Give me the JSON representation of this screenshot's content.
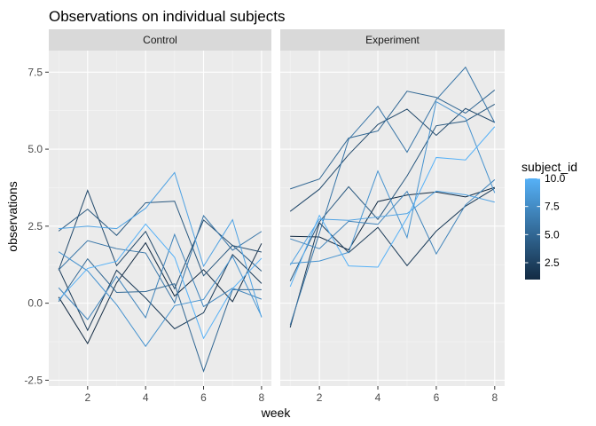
{
  "chart_data": {
    "type": "line",
    "title": "Observations on individual subjects",
    "xlabel": "week",
    "ylabel": "observations",
    "xlim": [
      0.66,
      8.34
    ],
    "ylim": [
      -2.69,
      8.2
    ],
    "x_ticks": [
      2,
      4,
      6,
      8
    ],
    "y_ticks": [
      -2.5,
      0.0,
      2.5,
      5.0,
      7.5
    ],
    "y_tick_labels": [
      "-2.5",
      "0.0",
      "2.5",
      "5.0",
      "7.5"
    ],
    "x": [
      1,
      2,
      3,
      4,
      5,
      6,
      7,
      8
    ],
    "grid": true,
    "color_legend": {
      "title": "subject_id",
      "range": [
        1,
        10
      ],
      "breaks": [
        2.5,
        5.0,
        7.5,
        10.0
      ],
      "break_labels": [
        "2.5",
        "5.0",
        "7.5",
        "10.0"
      ],
      "low_color": "#132B43",
      "high_color": "#56B1F7",
      "placement": "right"
    },
    "panels": [
      {
        "name": "Control",
        "series": [
          {
            "subject_id": 1,
            "values": [
              0.2,
              -1.31,
              0.66,
              1.96,
              0.23,
              1.09,
              0.05,
              1.94
            ]
          },
          {
            "subject_id": 2,
            "values": [
              1.13,
              -0.88,
              1.07,
              0.17,
              -0.83,
              -0.31,
              1.58,
              0.64
            ]
          },
          {
            "subject_id": 3,
            "values": [
              1.07,
              3.66,
              1.22,
              2.33,
              0.47,
              2.7,
              1.87,
              1.66
            ]
          },
          {
            "subject_id": 4,
            "values": [
              2.34,
              3.05,
              2.2,
              3.26,
              3.31,
              0.89,
              1.88,
              1.04
            ]
          },
          {
            "subject_id": 5,
            "values": [
              0.05,
              1.44,
              0.35,
              0.38,
              0.63,
              -2.21,
              0.44,
              0.44
            ]
          },
          {
            "subject_id": 6,
            "values": [
              1.08,
              2.03,
              1.77,
              1.63,
              0.01,
              2.84,
              1.72,
              2.33
            ]
          },
          {
            "subject_id": 7,
            "values": [
              0.5,
              -0.53,
              0.87,
              -0.47,
              2.23,
              -0.11,
              0.49,
              0.13
            ]
          },
          {
            "subject_id": 8,
            "values": [
              1.67,
              1.05,
              -0.05,
              -1.4,
              -0.08,
              0.12,
              1.52,
              -0.43
            ]
          },
          {
            "subject_id": 9,
            "values": [
              2.42,
              2.5,
              2.42,
              3.08,
              4.24,
              1.2,
              2.71,
              -0.46
            ]
          },
          {
            "subject_id": 10,
            "values": [
              0.11,
              1.13,
              1.36,
              2.57,
              1.49,
              -1.14,
              0.47,
              1.46
            ]
          }
        ]
      },
      {
        "name": "Experiment",
        "series": [
          {
            "subject_id": 1,
            "values": [
              2.17,
              2.15,
              1.73,
              3.3,
              3.51,
              3.61,
              3.45,
              3.76
            ]
          },
          {
            "subject_id": 2,
            "values": [
              -0.79,
              2.61,
              1.64,
              2.46,
              1.22,
              2.34,
              3.15,
              3.73
            ]
          },
          {
            "subject_id": 3,
            "values": [
              2.98,
              3.7,
              4.82,
              5.8,
              6.3,
              5.45,
              6.32,
              5.87
            ]
          },
          {
            "subject_id": 4,
            "values": [
              0.72,
              2.64,
              3.78,
              2.72,
              4.13,
              5.76,
              5.91,
              6.46
            ]
          },
          {
            "subject_id": 5,
            "values": [
              3.71,
              4.03,
              5.36,
              5.59,
              6.88,
              6.68,
              6.17,
              6.92
            ]
          },
          {
            "subject_id": 6,
            "values": [
              -0.71,
              2.28,
              5.32,
              6.39,
              4.9,
              6.61,
              7.66,
              5.86
            ]
          },
          {
            "subject_id": 7,
            "values": [
              2.09,
              1.77,
              2.66,
              2.56,
              3.63,
              1.6,
              3.19,
              4.01
            ]
          },
          {
            "subject_id": 8,
            "values": [
              1.29,
              1.37,
              1.65,
              4.29,
              2.13,
              6.54,
              6.0,
              3.58
            ]
          },
          {
            "subject_id": 9,
            "values": [
              1.24,
              2.73,
              2.69,
              2.8,
              2.91,
              3.64,
              3.52,
              3.28
            ]
          },
          {
            "subject_id": 10,
            "values": [
              0.54,
              2.85,
              1.21,
              1.17,
              2.77,
              4.73,
              4.65,
              5.73
            ]
          }
        ]
      }
    ]
  }
}
